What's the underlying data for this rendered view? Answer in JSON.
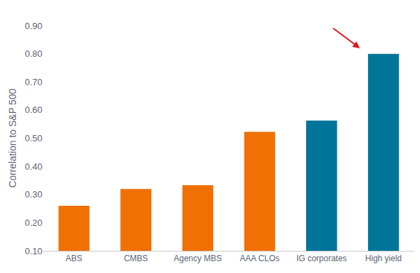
{
  "chart_data": {
    "type": "bar",
    "categories": [
      "ABS",
      "CMBS",
      "Agency MBS",
      "AAA CLOs",
      "IG corporates",
      "High yield"
    ],
    "values": [
      0.26,
      0.32,
      0.333,
      0.523,
      0.563,
      0.8
    ],
    "colors": [
      "#f07003",
      "#f07003",
      "#f07003",
      "#f07003",
      "#00759a",
      "#00759a"
    ],
    "y_label": "Correlation to S&P 500",
    "ylim": [
      0.1,
      0.9
    ],
    "yticks": [
      {
        "value": 0.1,
        "label": "0.10"
      },
      {
        "value": 0.2,
        "label": "0.20"
      },
      {
        "value": 0.3,
        "label": "0.30"
      },
      {
        "value": 0.4,
        "label": "0.40"
      },
      {
        "value": 0.5,
        "label": "0.50"
      },
      {
        "value": 0.6,
        "label": "0.60"
      },
      {
        "value": 0.7,
        "label": "0.70"
      },
      {
        "value": 0.8,
        "label": "0.80"
      },
      {
        "value": 0.9,
        "label": "0.90"
      }
    ],
    "grid": false
  }
}
